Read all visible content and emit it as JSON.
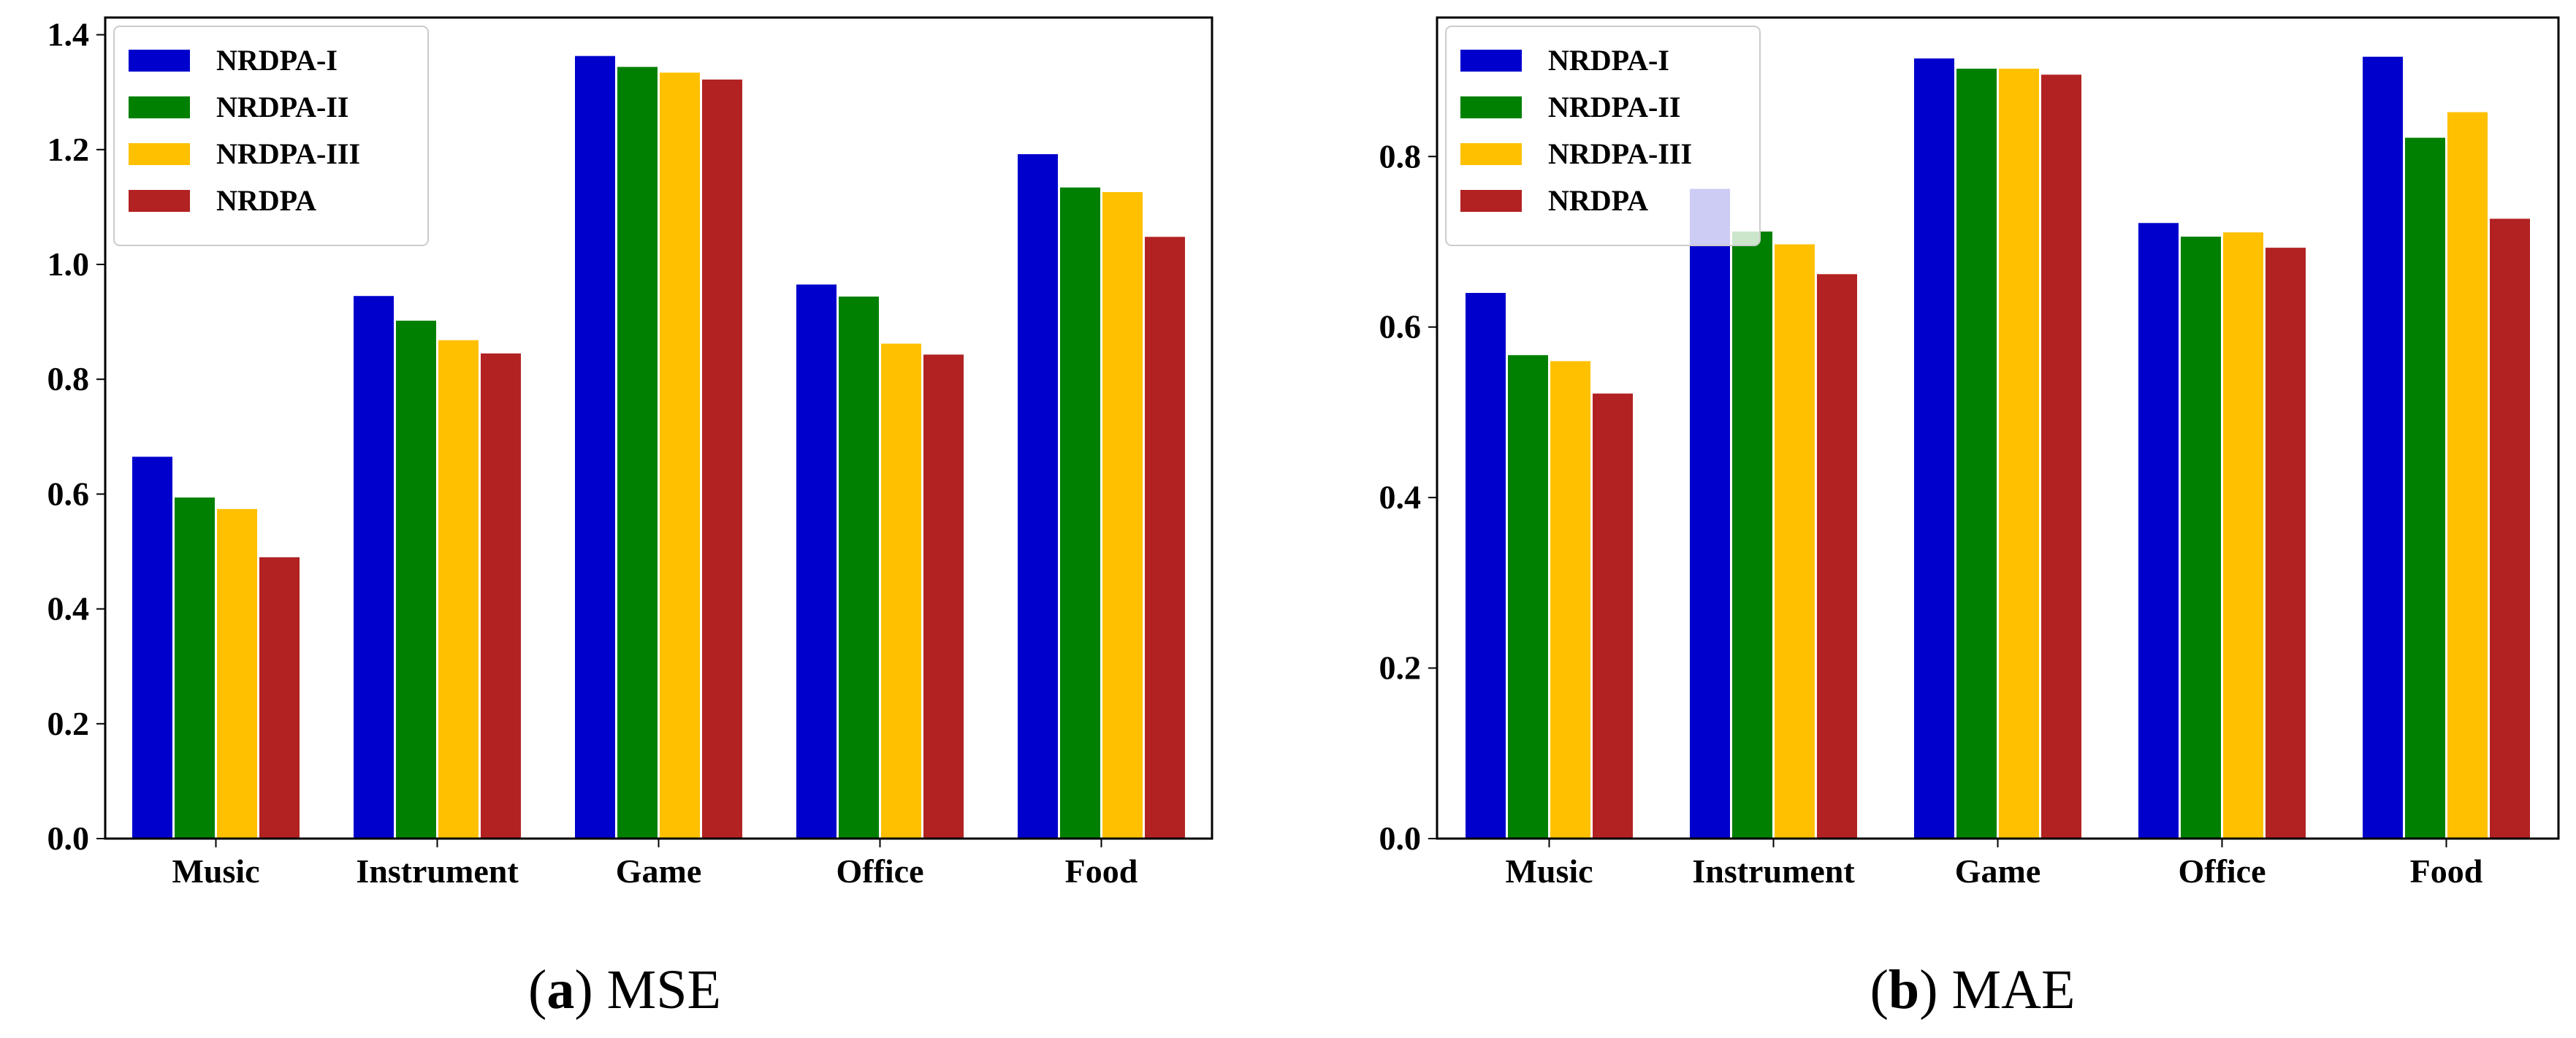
{
  "chart_data": [
    {
      "type": "bar",
      "title": "",
      "xlabel": "",
      "ylabel": "",
      "categories": [
        "Music",
        "Instrument",
        "Game",
        "Office",
        "Food"
      ],
      "series": [
        {
          "name": "NRDPA-I",
          "color": "#0000CD",
          "values": [
            0.665,
            0.945,
            1.363,
            0.965,
            1.192
          ]
        },
        {
          "name": "NRDPA-II",
          "color": "#008000",
          "values": [
            0.594,
            0.902,
            1.344,
            0.944,
            1.134
          ]
        },
        {
          "name": "NRDPA-III",
          "color": "#FFC000",
          "values": [
            0.574,
            0.868,
            1.334,
            0.862,
            1.126
          ]
        },
        {
          "name": "NRDPA",
          "color": "#B22222",
          "values": [
            0.49,
            0.845,
            1.322,
            0.843,
            1.048
          ]
        }
      ],
      "ylim": [
        0,
        1.43
      ],
      "yticks": [
        0.0,
        0.2,
        0.4,
        0.6,
        0.8,
        1.0,
        1.2,
        1.4
      ],
      "ytick_labels": [
        "0.0",
        "0.2",
        "0.4",
        "0.6",
        "0.8",
        "1.0",
        "1.2",
        "1.4"
      ],
      "legend": "top-left",
      "caption_letter": "a",
      "caption_text": "MSE"
    },
    {
      "type": "bar",
      "title": "",
      "xlabel": "",
      "ylabel": "",
      "categories": [
        "Music",
        "Instrument",
        "Game",
        "Office",
        "Food"
      ],
      "series": [
        {
          "name": "NRDPA-I",
          "color": "#0000CD",
          "values": [
            0.64,
            0.762,
            0.915,
            0.722,
            0.917
          ]
        },
        {
          "name": "NRDPA-II",
          "color": "#008000",
          "values": [
            0.567,
            0.712,
            0.903,
            0.706,
            0.822
          ]
        },
        {
          "name": "NRDPA-III",
          "color": "#FFC000",
          "values": [
            0.56,
            0.697,
            0.903,
            0.711,
            0.852
          ]
        },
        {
          "name": "NRDPA",
          "color": "#B22222",
          "values": [
            0.522,
            0.662,
            0.896,
            0.693,
            0.727
          ]
        }
      ],
      "ylim": [
        0,
        0.963
      ],
      "yticks": [
        0.0,
        0.2,
        0.4,
        0.6,
        0.8
      ],
      "ytick_labels": [
        "0.0",
        "0.2",
        "0.4",
        "0.6",
        "0.8"
      ],
      "legend": "top-left",
      "caption_letter": "b",
      "caption_text": "MAE"
    }
  ],
  "captions": {
    "a_letter": "a",
    "a_text": "MSE",
    "b_letter": "b",
    "b_text": "MAE"
  }
}
